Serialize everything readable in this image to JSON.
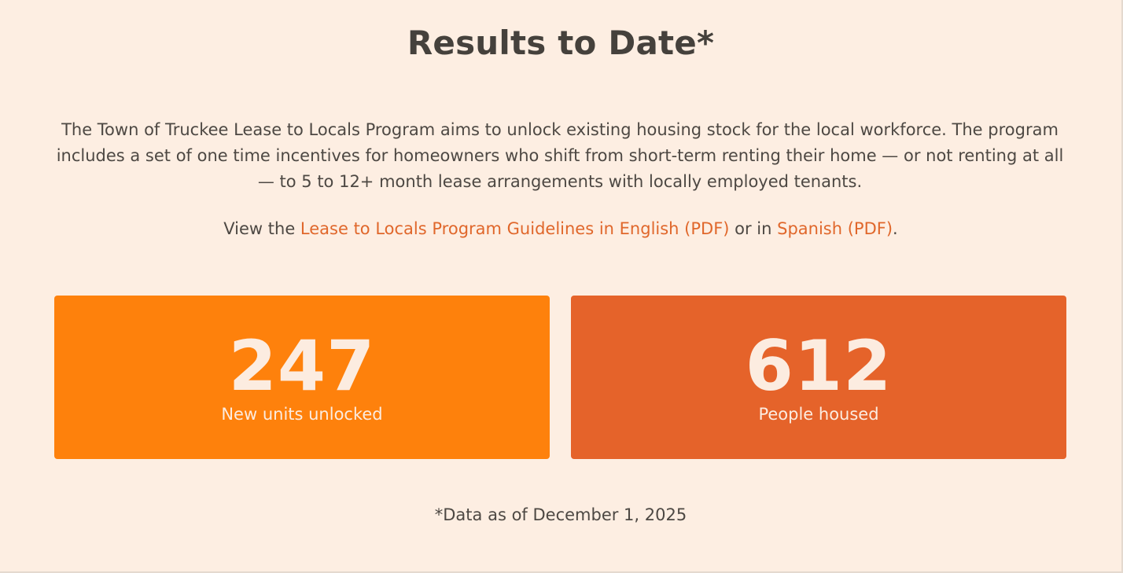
{
  "heading": "Results to Date*",
  "intro": "The Town of Truckee Lease to Locals Program aims to unlock existing housing stock for the local workforce. The program includes a set of one time incentives for homeowners who shift from short-term renting their home — or not renting at all — to 5 to 12+ month lease arrangements with locally employed tenants.",
  "guidelines": {
    "prefix": "View the ",
    "english_link": "Lease to Locals Program Guidelines in English (PDF)",
    "middle": " or in ",
    "spanish_link": "Spanish (PDF)",
    "suffix": "."
  },
  "stats": [
    {
      "value": "247",
      "label": "New units unlocked",
      "color": "#fe810c"
    },
    {
      "value": "612",
      "label": "People housed",
      "color": "#e5632a"
    }
  ],
  "footnote": "*Data as of December 1, 2025",
  "colors": {
    "background": "#fdeee2",
    "link": "#e0672b",
    "text": "#47423d"
  }
}
